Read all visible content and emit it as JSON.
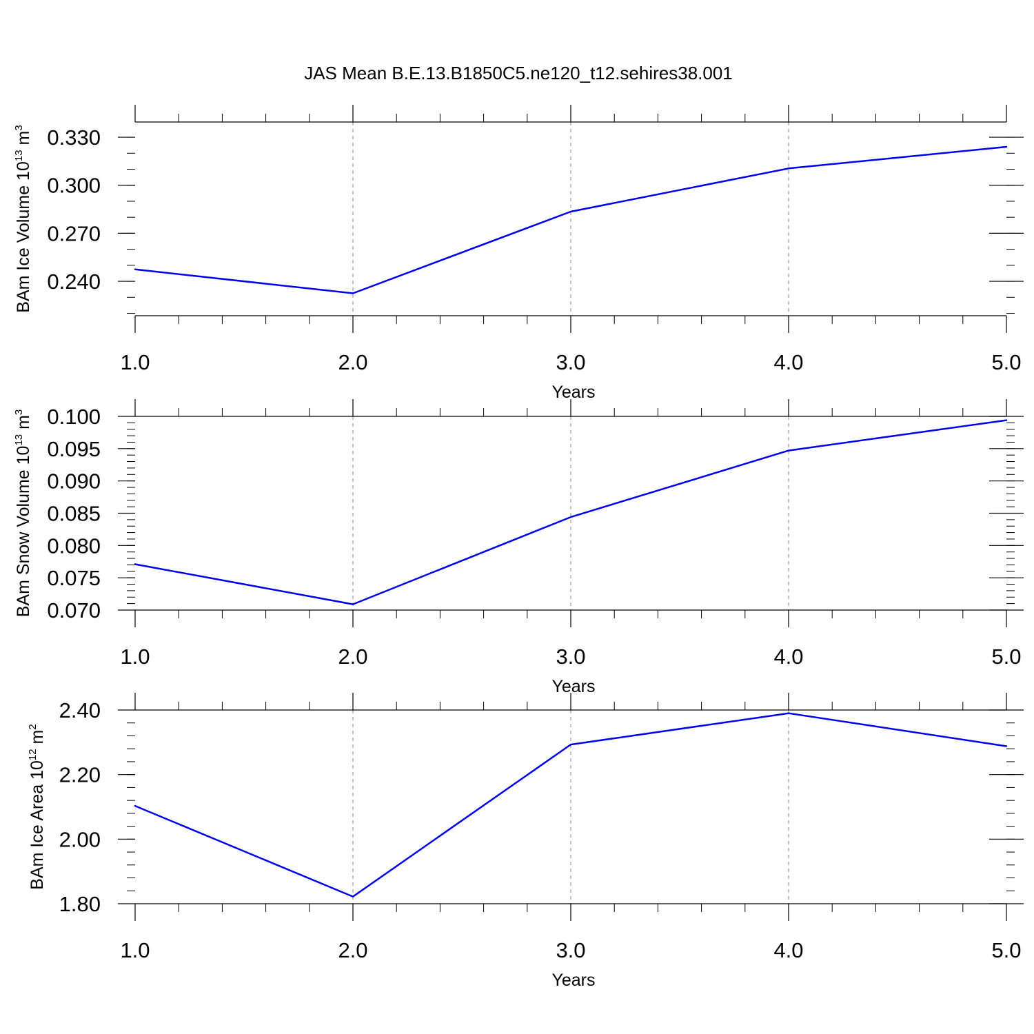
{
  "title": "JAS Mean B.E.13.B1850C5.ne120_t12.sehires38.001",
  "colors": {
    "line": "#0000ee",
    "axis": "#000000",
    "grid": "#888888"
  },
  "chart_data": [
    {
      "type": "line",
      "title": "JAS Mean B.E.13.B1850C5.ne120_t12.sehires38.001",
      "xlabel": "Years",
      "ylabel": {
        "main": "BAm Ice Volume 10",
        "exp": "13",
        "unit": " m",
        "unit_exp": "3"
      },
      "xlim": [
        1.0,
        5.0
      ],
      "ylim": [
        0.2185,
        0.3395
      ],
      "x_ticks": [
        1.0,
        2.0,
        3.0,
        4.0,
        5.0
      ],
      "x_tick_labels": [
        "1.0",
        "2.0",
        "3.0",
        "4.0",
        "5.0"
      ],
      "y_ticks": [
        0.24,
        0.27,
        0.3,
        0.33
      ],
      "y_tick_labels": [
        "0.240",
        "0.270",
        "0.300",
        "0.330"
      ],
      "y_minor_step": 0.01,
      "series": [
        {
          "name": "BAm Ice Volume",
          "x": [
            1.0,
            2.0,
            3.0,
            4.0,
            5.0
          ],
          "y": [
            0.2475,
            0.2325,
            0.2835,
            0.3105,
            0.324
          ]
        }
      ]
    },
    {
      "type": "line",
      "xlabel": "Years",
      "ylabel": {
        "main": "BAm Snow Volume 10",
        "exp": "13",
        "unit": " m",
        "unit_exp": "3"
      },
      "xlim": [
        1.0,
        5.0
      ],
      "ylim": [
        0.07,
        0.1
      ],
      "x_ticks": [
        1.0,
        2.0,
        3.0,
        4.0,
        5.0
      ],
      "x_tick_labels": [
        "1.0",
        "2.0",
        "3.0",
        "4.0",
        "5.0"
      ],
      "y_ticks": [
        0.07,
        0.075,
        0.08,
        0.085,
        0.09,
        0.095,
        0.1
      ],
      "y_tick_labels": [
        "0.070",
        "0.075",
        "0.080",
        "0.085",
        "0.090",
        "0.095",
        "0.100"
      ],
      "y_minor_step": 0.001,
      "series": [
        {
          "name": "BAm Snow Volume",
          "x": [
            1.0,
            2.0,
            3.0,
            4.0,
            5.0
          ],
          "y": [
            0.0771,
            0.0709,
            0.0844,
            0.0947,
            0.0994
          ]
        }
      ]
    },
    {
      "type": "line",
      "xlabel": "Years",
      "ylabel": {
        "main": "BAm Ice Area 10",
        "exp": "12",
        "unit": " m",
        "unit_exp": "2"
      },
      "xlim": [
        1.0,
        5.0
      ],
      "ylim": [
        1.8,
        2.4
      ],
      "x_ticks": [
        1.0,
        2.0,
        3.0,
        4.0,
        5.0
      ],
      "x_tick_labels": [
        "1.0",
        "2.0",
        "3.0",
        "4.0",
        "5.0"
      ],
      "y_ticks": [
        1.8,
        2.0,
        2.2,
        2.4
      ],
      "y_tick_labels": [
        "1.80",
        "2.00",
        "2.20",
        "2.40"
      ],
      "y_minor_step": 0.04,
      "series": [
        {
          "name": "BAm Ice Area",
          "x": [
            1.0,
            2.0,
            3.0,
            4.0,
            5.0
          ],
          "y": [
            2.103,
            1.822,
            2.293,
            2.39,
            2.288
          ]
        }
      ]
    }
  ]
}
